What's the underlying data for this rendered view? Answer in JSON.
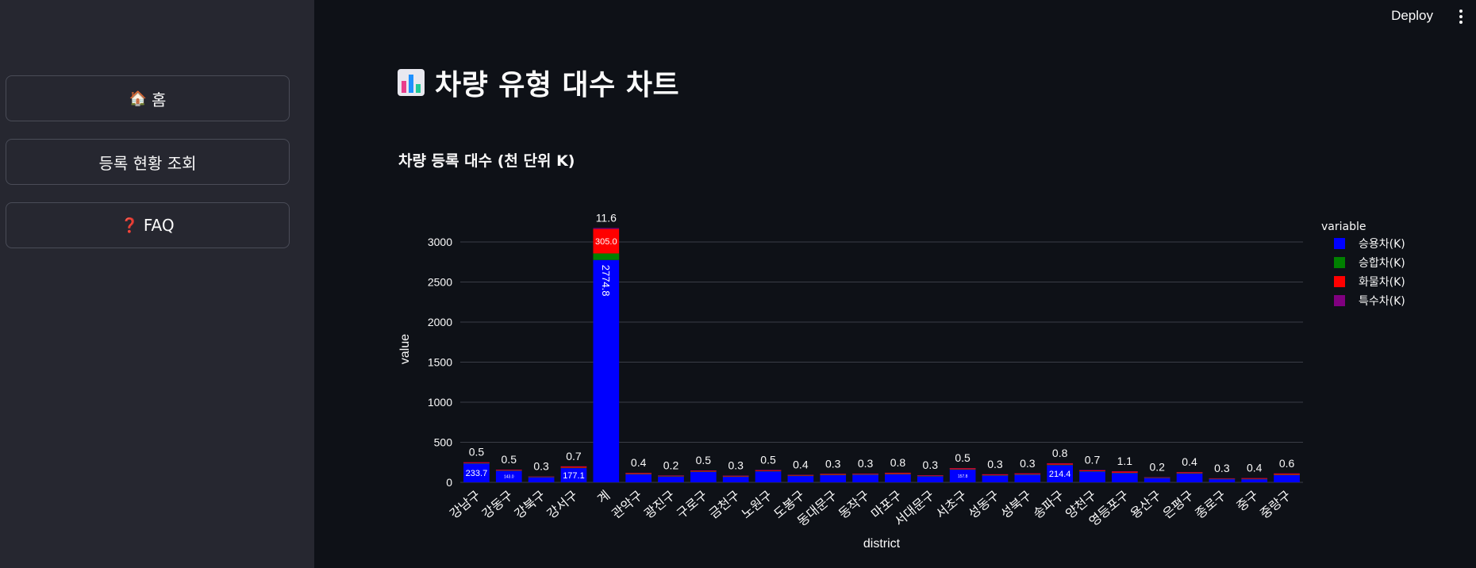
{
  "sidebar": {
    "items": [
      {
        "icon": "🏠",
        "label": "홈"
      },
      {
        "icon": "",
        "label": "등록 현황 조회"
      },
      {
        "icon": "❓",
        "label": "FAQ"
      }
    ]
  },
  "header": {
    "deploy_label": "Deploy"
  },
  "main": {
    "title": "차량 유형 대수 차트",
    "subheader": "차량 등록 대수 (천 단위 K)"
  },
  "chart_data": {
    "type": "bar",
    "stacked": true,
    "xlabel": "district",
    "ylabel": "value",
    "ylim": [
      0,
      3250
    ],
    "yticks": [
      0,
      500,
      1000,
      1500,
      2000,
      2500,
      3000
    ],
    "legend_title": "variable",
    "legend_position": "right",
    "grid": true,
    "categories": [
      "강남구",
      "강동구",
      "강북구",
      "강서구",
      "계",
      "관악구",
      "광진구",
      "구로구",
      "금천구",
      "노원구",
      "도봉구",
      "동대문구",
      "동작구",
      "마포구",
      "서대문구",
      "서초구",
      "성동구",
      "성북구",
      "송파구",
      "양천구",
      "영등포구",
      "용산구",
      "은평구",
      "종로구",
      "중구",
      "중랑구"
    ],
    "series": [
      {
        "name": "승용차(K)",
        "color": "#0000ff",
        "values": [
          233.7,
          143.0,
          63.4,
          177.1,
          2774.8,
          100.0,
          73.0,
          130.5,
          70.0,
          136.8,
          80.0,
          90.0,
          95.0,
          100.0,
          75.0,
          157.8,
          85.0,
          95.0,
          214.4,
          135.0,
          115.5,
          54.8,
          110.0,
          40.0,
          40.0,
          90.0
        ]
      },
      {
        "name": "승합차(K)",
        "color": "#008000",
        "values": [
          5.0,
          4.0,
          3.0,
          5.0,
          82.0,
          4.0,
          3.0,
          4.0,
          3.0,
          4.0,
          3.0,
          4.0,
          3.0,
          4.0,
          3.0,
          5.0,
          3.0,
          4.0,
          6.0,
          4.0,
          4.0,
          2.0,
          4.0,
          2.0,
          2.0,
          4.0
        ]
      },
      {
        "name": "화물차(K)",
        "color": "#ff0000",
        "values": [
          11.0,
          11.0,
          6.0,
          17.0,
          305.0,
          13.0,
          9.0,
          13.0,
          11.0,
          13.0,
          10.0,
          12.0,
          10.0,
          15.0,
          9.0,
          14.0,
          12.0,
          12.0,
          17.0,
          14.0,
          17.0,
          7.0,
          13.0,
          8.0,
          10.0,
          16.0
        ]
      },
      {
        "name": "특수차(K)",
        "color": "#800080",
        "values": [
          0.5,
          0.5,
          0.3,
          0.7,
          11.6,
          0.4,
          0.2,
          0.5,
          0.3,
          0.5,
          0.4,
          0.3,
          0.3,
          0.8,
          0.3,
          0.5,
          0.3,
          0.3,
          0.8,
          0.7,
          1.1,
          0.2,
          0.4,
          0.3,
          0.4,
          0.6
        ]
      }
    ],
    "top_labels": [
      "0.5",
      "0.5",
      "0.3",
      "0.7",
      "11.6",
      "0.4",
      "0.2",
      "0.5",
      "0.3",
      "0.5",
      "0.4",
      "0.3",
      "0.3",
      "0.8",
      "0.3",
      "0.5",
      "0.3",
      "0.3",
      "0.8",
      "0.7",
      "1.1",
      "0.2",
      "0.4",
      "0.3",
      "0.4",
      "0.6"
    ],
    "red_labels": {
      "4": "305.0"
    }
  }
}
